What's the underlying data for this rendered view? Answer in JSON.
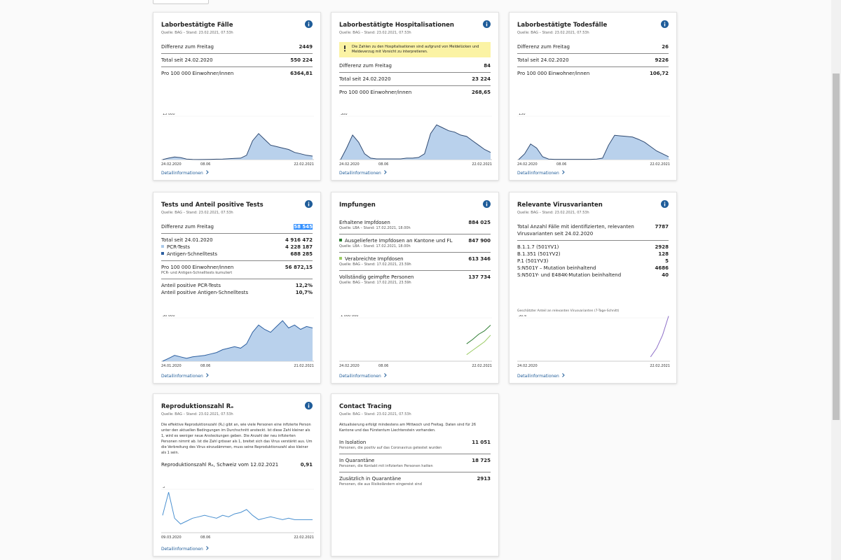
{
  "cards": [
    {
      "title": "Laborbestätigte Fälle",
      "source": "Quelle: BAG – Stand: 23.02.2021, 07.53h",
      "groups": [
        [
          {
            "label": "Differenz zum Freitag",
            "value": "2449"
          }
        ],
        [
          {
            "label": "Total seit 24.02.2020",
            "value": "550 224"
          }
        ],
        [
          {
            "label": "Pro 100 000 Einwohner/innen",
            "value": "6364,81"
          }
        ]
      ],
      "chart": {
        "type": "area",
        "ylim": [
          0,
          15000
        ],
        "yticks": [
          {
            "value": 15000,
            "label": "15 000"
          }
        ],
        "xlabels": [
          "24.02.2020",
          "08.06",
          "22.02.2021"
        ],
        "series": [
          {
            "color": "#2f4a72",
            "fill": "#b9d1ec",
            "values": [
              0,
              500,
              900,
              700,
              200,
              50,
              30,
              50,
              100,
              150,
              200,
              300,
              400,
              500,
              1500,
              6500,
              9000,
              7000,
              5000,
              4500,
              4000,
              3500,
              2500,
              2000,
              1500,
              1200
            ]
          }
        ]
      },
      "link": "Detailinformationen"
    },
    {
      "title": "Laborbestätigte Hospitalisationen",
      "source": "Quelle: BAG – Stand: 23.02.2021, 07.53h",
      "notice": "Die Zahlen zu den Hospitalisationen sind aufgrund von Meldelücken und Meldeverzug mit Vorsicht zu interpretieren.",
      "groups": [
        [
          {
            "label": "Differenz zum Freitag",
            "value": "84"
          }
        ],
        [
          {
            "label": "Total seit 24.02.2020",
            "value": "23 224"
          }
        ],
        [
          {
            "label": "Pro 100 000 Einwohner/innen",
            "value": "268,65"
          }
        ]
      ],
      "chart": {
        "type": "area",
        "ylim": [
          0,
          300
        ],
        "yticks": [
          300
        ],
        "xlabels": [
          "24.02.2020",
          "08.06",
          "22.02.2021"
        ],
        "series": [
          {
            "color": "#2f4a72",
            "fill": "#b9d1ec",
            "values": [
              0,
              80,
              170,
              120,
              40,
              10,
              5,
              5,
              5,
              5,
              5,
              10,
              10,
              15,
              40,
              180,
              240,
              220,
              200,
              190,
              170,
              160,
              130,
              100,
              70,
              50
            ]
          }
        ]
      },
      "link": "Detailinformationen"
    },
    {
      "title": "Laborbestätigte Todesfälle",
      "source": "Quelle: BAG – Stand: 23.02.2021, 07.53h",
      "groups": [
        [
          {
            "label": "Differenz zum Freitag",
            "value": "26"
          }
        ],
        [
          {
            "label": "Total seit 24.02.2020",
            "value": "9226"
          }
        ],
        [
          {
            "label": "Pro 100 000 Einwohner/innen",
            "value": "106,72"
          }
        ]
      ],
      "chart": {
        "type": "area",
        "ylim": [
          0,
          150
        ],
        "yticks": [
          150
        ],
        "xlabels": [
          "24.02.2020",
          "08.06",
          "22.02.2021"
        ],
        "series": [
          {
            "color": "#2f4a72",
            "fill": "#b9d1ec",
            "values": [
              0,
              20,
              54,
              40,
              10,
              2,
              1,
              1,
              1,
              1,
              1,
              1,
              1,
              2,
              5,
              50,
              84,
              82,
              80,
              78,
              70,
              60,
              45,
              30,
              20,
              10
            ]
          }
        ]
      },
      "link": "Detailinformationen"
    },
    {
      "title": "Tests und Anteil positive Tests",
      "source": "Quelle: BAG – Stand: 23.02.2021, 07.53h",
      "groups": [
        [
          {
            "label": "Differenz zum Freitag",
            "value": "58 545",
            "highlight": true
          }
        ],
        [
          {
            "label": "Total seit 24.01.2020",
            "value": "4 916 472"
          },
          {
            "label": "PCR-Tests",
            "value": "4 228 187",
            "bullet": "#a9c9ea"
          },
          {
            "label": "Antigen-Schnelltests",
            "value": "688 285",
            "bullet": "#2c5fa0"
          }
        ],
        [
          {
            "label": "Pro 100 000 Einwohner/innen",
            "value": "56 872,15",
            "sub": "PCR- und Antigen-Schnelltests kumuliert"
          }
        ],
        [
          {
            "label": "Anteil positive PCR-Tests",
            "value": "12,2%"
          },
          {
            "label": "Anteil positive Antigen-Schnelltests",
            "value": "10,7%"
          }
        ]
      ],
      "chart": {
        "type": "area",
        "ylim": [
          0,
          30000
        ],
        "yticks": [
          {
            "value": 30000,
            "label": "30 000"
          }
        ],
        "xlabels": [
          "24.01.2020",
          "08.06",
          "21.02.2021"
        ],
        "series": [
          {
            "color": "#2c5fa0",
            "fill": "#b9d1ec",
            "values": [
              0,
              2000,
              4000,
              3000,
              2000,
              3000,
              3500,
              4000,
              5000,
              6000,
              8000,
              9000,
              10000,
              9000,
              12000,
              20000,
              25000,
              22000,
              20000,
              24000,
              28000,
              23000,
              25000,
              22000,
              24000,
              23000
            ]
          }
        ]
      },
      "link": "Detailinformationen"
    },
    {
      "title": "Impfungen",
      "groups": [
        [
          {
            "label": "Erhaltene Impfdosen",
            "value": "884 025",
            "sub": "Quelle: LBA – Stand: 17.02.2021, 18.00h"
          }
        ],
        [
          {
            "label": "Ausgelieferte Impfdosen an Kantone und FL",
            "value": "847 900",
            "sub": "Quelle: LBA – Stand: 17.02.2021, 18.00h",
            "bullet": "#2e7d32"
          }
        ],
        [
          {
            "label": "Verabreichte Impfdosen",
            "value": "613 346",
            "sub": "Quelle: BAG – Stand: 17.02.2021, 23.59h",
            "bullet": "#9ccc65"
          }
        ],
        [
          {
            "label": "Vollständig geimpfte Personen",
            "value": "137 734",
            "sub": "Quelle: BAG – Stand: 17.02.2021, 23.59h"
          }
        ]
      ],
      "chart": {
        "type": "line",
        "ylim": [
          0,
          1000000
        ],
        "yticks": [
          {
            "value": 1000000,
            "label": "1 000 000"
          }
        ],
        "xlabels": [
          "24.02.2020",
          "08.06",
          "22.02.2021"
        ],
        "series": [
          {
            "color": "#2e7d32",
            "values": [
              null,
              null,
              null,
              null,
              null,
              null,
              null,
              null,
              null,
              null,
              null,
              null,
              null,
              null,
              null,
              null,
              null,
              null,
              null,
              null,
              null,
              400000,
              500000,
              620000,
              700000,
              830000
            ]
          },
          {
            "color": "#9ccc65",
            "values": [
              null,
              null,
              null,
              null,
              null,
              null,
              null,
              null,
              null,
              null,
              null,
              null,
              null,
              null,
              null,
              null,
              null,
              null,
              null,
              null,
              null,
              150000,
              250000,
              350000,
              450000,
              600000
            ]
          }
        ]
      },
      "link": "Detailinformationen"
    },
    {
      "title": "Relevante Virusvarianten",
      "source": "Quelle: BAG – Stand: 23.02.2021, 07.53h",
      "groups": [
        [
          {
            "label": "Total Anzahl Fälle mit identifizierten, relevanten Virusvarianten seit 24.02.2020",
            "value": "7787"
          }
        ],
        [
          {
            "label": "B.1.1.7 (501YV1)",
            "value": "2928"
          },
          {
            "label": "B.1.351 (501YV2)",
            "value": "128"
          },
          {
            "label": "P.1 (501YV3)",
            "value": "5"
          },
          {
            "label": "S:N501Y – Mutation beinhaltend",
            "value": "4686"
          },
          {
            "label": "S:N501Y- und E484K-Mutation beinhaltend",
            "value": "40"
          }
        ]
      ],
      "chart": {
        "type": "line",
        "caption": "Geschätzter Anteil an relevanten Virusvarianten (7-Tage-Schnitt)",
        "ylim": [
          0,
          50
        ],
        "yticks": [
          {
            "value": 50,
            "label": "50%"
          }
        ],
        "xlabels": [
          "24.02.2020",
          "22.02.2021"
        ],
        "series": [
          {
            "color": "#8e6fc8",
            "values": [
              null,
              null,
              null,
              null,
              null,
              null,
              null,
              null,
              null,
              null,
              null,
              null,
              null,
              null,
              null,
              null,
              null,
              null,
              null,
              null,
              null,
              null,
              5,
              15,
              30,
              52
            ]
          }
        ]
      },
      "link": "Detailinformationen"
    },
    {
      "title": "Reproduktionszahl Rₑ",
      "source": "Quelle: BAG – Stand: 23.02.2021, 07.53h",
      "text": "Die effektive Reproduktionszahl (Rₑ) gibt an, wie viele Personen eine infizierte Person unter den aktuellen Bedingungen im Durchschnitt ansteckt. Ist diese Zahl kleiner als 1, wird es weniger neue Ansteckungen geben. Die Anzahl der neu infizierten Personen nimmt ab. Ist die Zahl grösser als 1, breitet sich das Virus verstärkt aus. Um die Verbreitung des Virus einzudämmen, muss seine Reproduktionszahl also kleiner als 1 sein.",
      "groups": [
        [
          {
            "label": "Reproduktionszahl Rₑ, Schweiz vom 12.02.2021",
            "value": "0,91"
          }
        ]
      ],
      "chart": {
        "type": "line",
        "ylim": [
          0,
          3
        ],
        "yticks": [
          3
        ],
        "xlabels": [
          "09.03.2020",
          "08.06",
          "22.02.2021"
        ],
        "series": [
          {
            "color": "#4a90d0",
            "values": [
              1.2,
              2.8,
              1.0,
              0.6,
              0.8,
              1.0,
              1.1,
              1.2,
              1.1,
              1.0,
              1.2,
              1.1,
              1.3,
              1.4,
              1.6,
              1.2,
              0.9,
              1.0,
              1.1,
              1.0,
              0.9,
              1.0,
              0.9,
              0.9,
              0.9,
              0.9
            ]
          }
        ]
      },
      "link": "Detailinformationen"
    },
    {
      "title": "Contact Tracing",
      "source": "Quelle: BAG – Stand: 23.02.2021, 07.53h",
      "text": "Aktualisierung erfolgt mindestens am Mittwoch und Freitag. Daten sind für 26 Kantone und das Fürstentum Liechtenstein vorhanden.",
      "groups": [
        [
          {
            "label": "In Isolation",
            "value": "11 051",
            "sub": "Personen, die positiv auf das Coronavirus getestet wurden"
          }
        ],
        [
          {
            "label": "In Quarantäne",
            "value": "18 725",
            "sub": "Personen, die Kontakt mit infizierten Personen hatten"
          }
        ],
        [
          {
            "label": "Zusätzlich in Quarantäne",
            "value": "2913",
            "sub": "Personen, die aus Risikoländern eingereist sind"
          }
        ]
      ]
    }
  ]
}
